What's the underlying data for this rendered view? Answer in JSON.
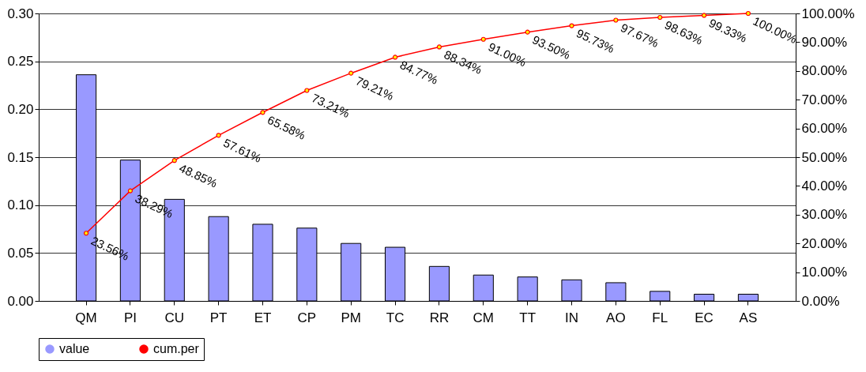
{
  "chart_data": {
    "type": "bar",
    "categories": [
      "QM",
      "PI",
      "CU",
      "PT",
      "ET",
      "CP",
      "PM",
      "TC",
      "RR",
      "CM",
      "TT",
      "IN",
      "AO",
      "FL",
      "EC",
      "AS"
    ],
    "series": [
      {
        "name": "value",
        "color": "#9999ff",
        "values": [
          0.236,
          0.147,
          0.106,
          0.088,
          0.08,
          0.076,
          0.06,
          0.056,
          0.036,
          0.027,
          0.025,
          0.022,
          0.019,
          0.01,
          0.007,
          0.007
        ]
      },
      {
        "name": "cum.per",
        "type": "line",
        "axis": "y2",
        "color": "#ff0000",
        "marker": "circle",
        "values": [
          23.56,
          38.29,
          48.85,
          57.61,
          65.58,
          73.21,
          79.21,
          84.77,
          88.34,
          91.0,
          93.5,
          95.73,
          97.67,
          98.63,
          99.33,
          100.0
        ],
        "value_labels": [
          "23.56%",
          "38.29%",
          "48.85%",
          "57.61%",
          "65.58%",
          "73.21%",
          "79.21%",
          "84.77%",
          "88.34%",
          "91.00%",
          "93.50%",
          "95.73%",
          "97.67%",
          "98.63%",
          "99.33%",
          "100.00%"
        ]
      }
    ],
    "ylim": [
      0,
      0.3
    ],
    "yticks": [
      {
        "value": 0,
        "label": "0.00"
      },
      {
        "value": 0.05,
        "label": "0.05"
      },
      {
        "value": 0.1,
        "label": "0.10"
      },
      {
        "value": 0.15,
        "label": "0.15"
      },
      {
        "value": 0.2,
        "label": "0.20"
      },
      {
        "value": 0.25,
        "label": "0.25"
      },
      {
        "value": 0.3,
        "label": "0.30"
      }
    ],
    "y2lim": [
      0,
      100
    ],
    "y2ticks": [
      {
        "value": 0,
        "label": "0.00%"
      },
      {
        "value": 10,
        "label": "10.00%"
      },
      {
        "value": 20,
        "label": "20.00%"
      },
      {
        "value": 30,
        "label": "30.00%"
      },
      {
        "value": 40,
        "label": "40.00%"
      },
      {
        "value": 50,
        "label": "50.00%"
      },
      {
        "value": 60,
        "label": "60.00%"
      },
      {
        "value": 70,
        "label": "70.00%"
      },
      {
        "value": 80,
        "label": "80.00%"
      },
      {
        "value": 90,
        "label": "90.00%"
      },
      {
        "value": 100,
        "label": "100.00%"
      }
    ],
    "grid": "y",
    "legend": "bottom"
  }
}
